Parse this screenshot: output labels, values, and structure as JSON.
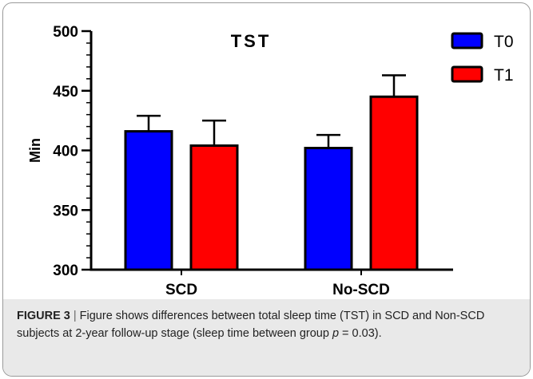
{
  "chart_data": {
    "type": "bar",
    "title": "TST",
    "ylabel": "Min",
    "xlabel": "",
    "categories": [
      "SCD",
      "No-SCD"
    ],
    "series": [
      {
        "name": "T0",
        "color": "#0000ff",
        "values": [
          416,
          402
        ],
        "error": [
          13,
          11
        ]
      },
      {
        "name": "T1",
        "color": "#ff0000",
        "values": [
          404,
          445
        ],
        "error": [
          21,
          18
        ]
      }
    ],
    "ylim": [
      300,
      500
    ],
    "yticks": [
      "300",
      "350",
      "400",
      "450",
      "500"
    ],
    "grid": false,
    "legend": "top-right"
  },
  "caption": {
    "label": "FIGURE 3",
    "separator": "|",
    "text_before": "Figure shows differences between total sleep time (TST) in SCD and Non-SCD subjects at 2-year follow-up stage (sleep time between group ",
    "p_symbol": "p",
    "text_after": " = 0.03)."
  }
}
